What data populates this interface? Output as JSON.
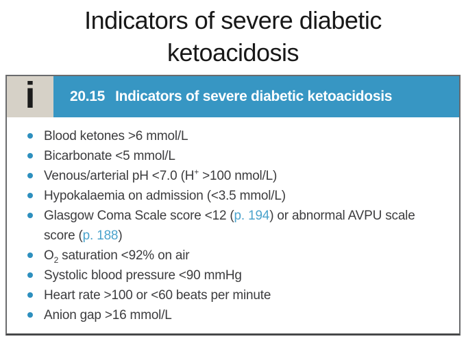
{
  "page": {
    "title_lines": [
      "Indicators of severe diabetic",
      "ketoacidosis"
    ]
  },
  "box": {
    "icon": "info-icon",
    "icon_glyph": "i",
    "number": "20.15",
    "title": "Indicators of severe diabetic ketoacidosis",
    "items": [
      {
        "segments": [
          {
            "t": "Blood ketones >6 mmol/L"
          }
        ]
      },
      {
        "segments": [
          {
            "t": "Bicarbonate <5 mmol/L"
          }
        ]
      },
      {
        "segments": [
          {
            "t": "Venous/arterial pH <7.0 (H"
          },
          {
            "t": "+",
            "style": "sup"
          },
          {
            "t": " >100 nmol/L)"
          }
        ]
      },
      {
        "segments": [
          {
            "t": "Hypokalaemia on admission (<3.5 mmol/L)"
          }
        ]
      },
      {
        "segments": [
          {
            "t": "Glasgow Coma Scale score <12 ("
          },
          {
            "t": "p. 194",
            "style": "link"
          },
          {
            "t": ") or abnormal AVPU scale score ("
          },
          {
            "t": "p. 188",
            "style": "link"
          },
          {
            "t": ")"
          }
        ]
      },
      {
        "segments": [
          {
            "t": "O"
          },
          {
            "t": "2",
            "style": "sub"
          },
          {
            "t": " saturation <92% on air"
          }
        ]
      },
      {
        "segments": [
          {
            "t": "Systolic blood pressure <90 mmHg"
          }
        ]
      },
      {
        "segments": [
          {
            "t": "Heart rate >100 or <60 beats per minute"
          }
        ]
      },
      {
        "segments": [
          {
            "t": "Anion gap >16 mmol/L"
          }
        ]
      }
    ]
  },
  "colors": {
    "header_blue": "#3796c3",
    "icon_bg": "#d6d1c7",
    "icon_ink": "#1b1b1b",
    "bullet_blue": "#2d8fbe",
    "link_blue": "#4ba3cc",
    "body_text": "#3c3c3e",
    "border_gray": "#6a6b6d",
    "border_dark": "#474849"
  }
}
